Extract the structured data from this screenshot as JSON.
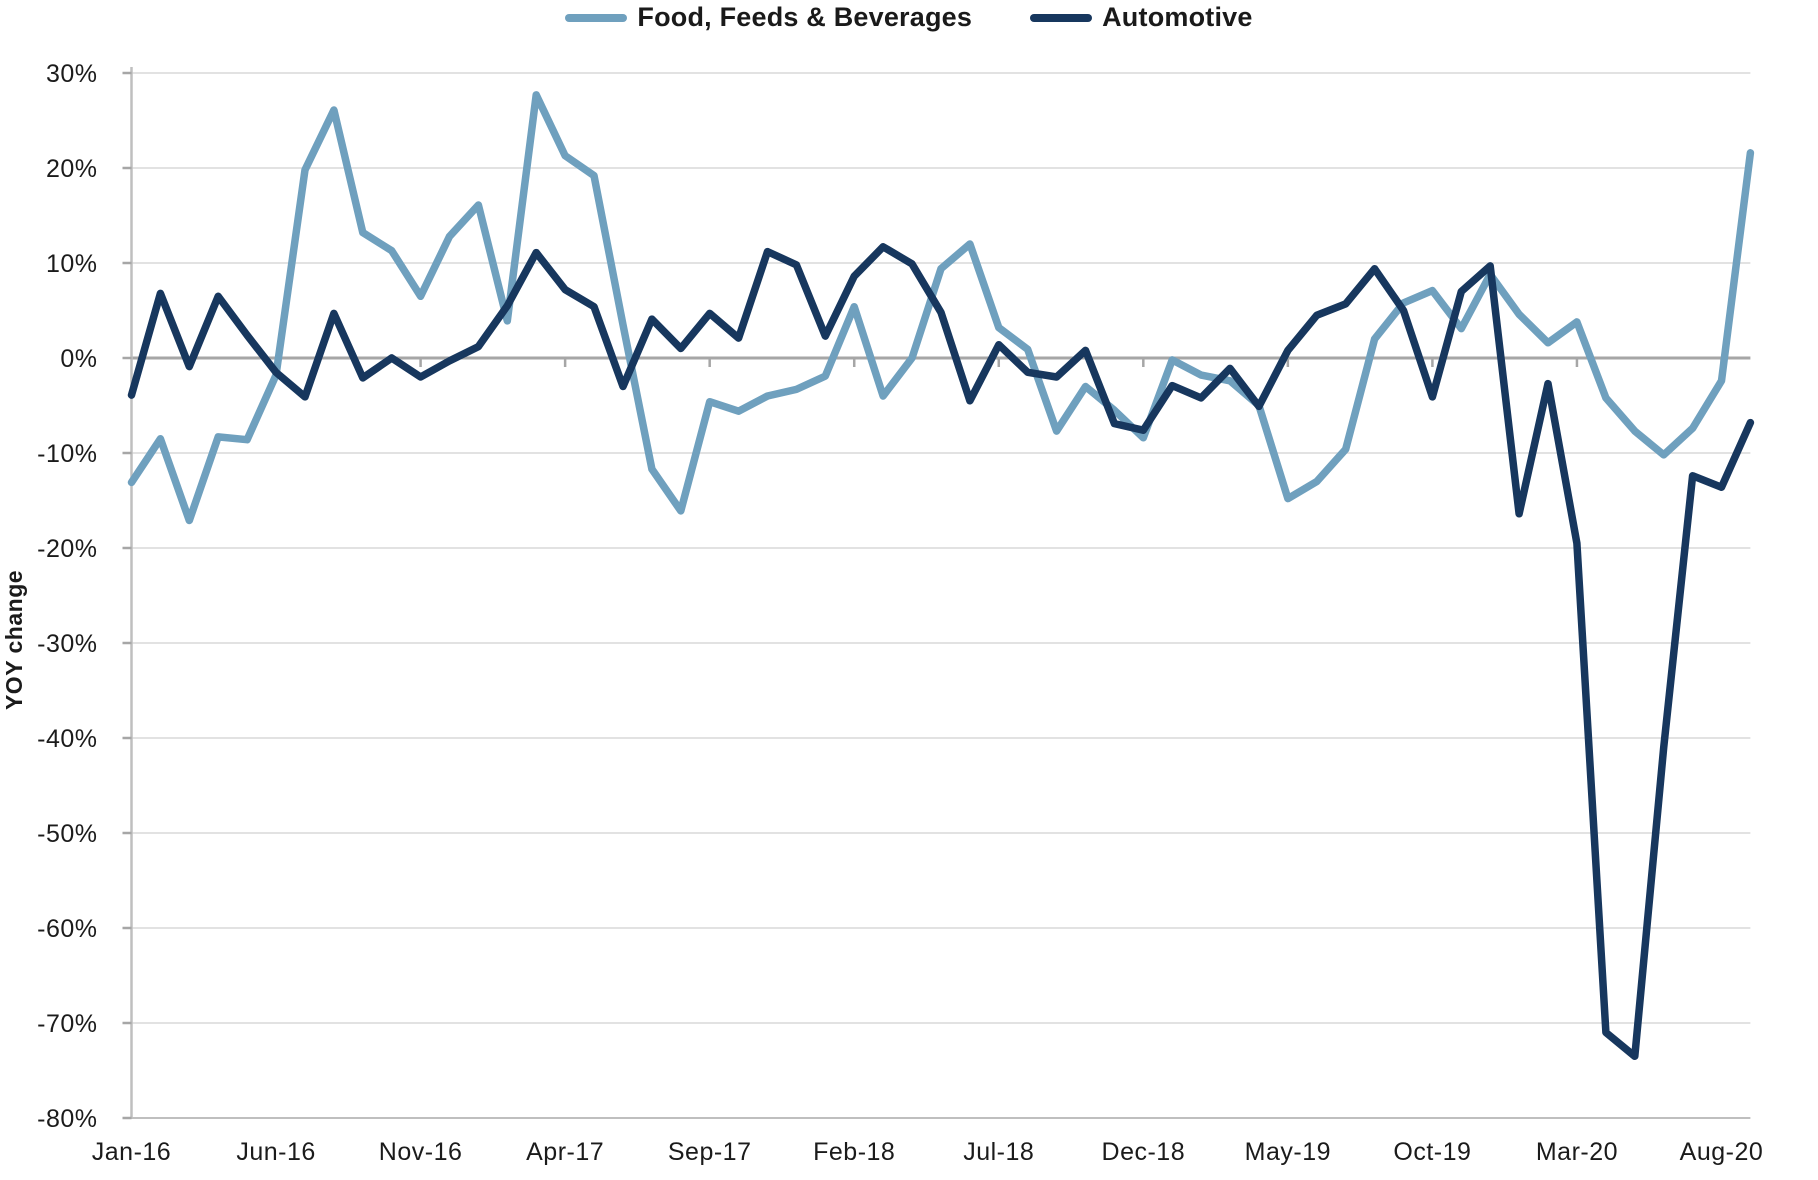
{
  "chart_data": {
    "type": "line",
    "title": "",
    "ylabel": "YOY change",
    "xlabel": "",
    "ylim": [
      -80,
      30
    ],
    "y_tick_step": 10,
    "y_tick_suffix": "%",
    "grid": "horizontal",
    "legend_position": "top-center",
    "x_label_every": 5,
    "months": [
      "Jan-16",
      "Feb-16",
      "Mar-16",
      "Apr-16",
      "May-16",
      "Jun-16",
      "Jul-16",
      "Aug-16",
      "Sep-16",
      "Oct-16",
      "Nov-16",
      "Dec-16",
      "Jan-17",
      "Feb-17",
      "Mar-17",
      "Apr-17",
      "May-17",
      "Jun-17",
      "Jul-17",
      "Aug-17",
      "Sep-17",
      "Oct-17",
      "Nov-17",
      "Dec-17",
      "Jan-18",
      "Feb-18",
      "Mar-18",
      "Apr-18",
      "May-18",
      "Jun-18",
      "Jul-18",
      "Aug-18",
      "Sep-18",
      "Oct-18",
      "Nov-18",
      "Dec-18",
      "Jan-19",
      "Feb-19",
      "Mar-19",
      "Apr-19",
      "May-19",
      "Jun-19",
      "Jul-19",
      "Aug-19",
      "Sep-19",
      "Oct-19",
      "Nov-19",
      "Dec-19",
      "Jan-20",
      "Feb-20",
      "Mar-20",
      "Apr-20",
      "May-20",
      "Jun-20",
      "Jul-20",
      "Aug-20",
      "Sep-20"
    ],
    "visible_x_tick_labels": [
      "Jan-16",
      "Jun-16",
      "Nov-16",
      "Apr-17",
      "Sep-17",
      "Feb-18",
      "Jul-18",
      "Dec-18",
      "May-19",
      "Oct-19",
      "Mar-20",
      "Aug-20"
    ],
    "series": [
      {
        "name": "Food, Feeds & Beverages",
        "color": "#6FA0BE",
        "values": [
          -13.1,
          -8.5,
          -17.1,
          -8.3,
          -8.6,
          -1.8,
          19.8,
          26.1,
          13.2,
          11.3,
          6.5,
          12.8,
          16.1,
          3.9,
          27.7,
          21.3,
          19.2,
          3.5,
          -11.7,
          -16.1,
          -4.6,
          -5.6,
          -4.0,
          -3.3,
          -1.9,
          5.4,
          -4.0,
          0.0,
          9.4,
          12.0,
          3.2,
          0.9,
          -7.7,
          -3.0,
          -5.5,
          -8.4,
          -0.2,
          -1.8,
          -2.4,
          -5.0,
          -14.8,
          -13.0,
          -9.6,
          2.0,
          5.8,
          7.1,
          3.1,
          8.8,
          4.6,
          1.6,
          3.8,
          -4.2,
          -7.7,
          -10.2,
          -7.4,
          -2.4,
          21.6
        ]
      },
      {
        "name": "Automotive",
        "color": "#17375E",
        "values": [
          -3.9,
          6.8,
          -0.9,
          6.5,
          2.4,
          -1.5,
          -4.1,
          4.7,
          -2.1,
          0.0,
          -2.0,
          -0.3,
          1.2,
          5.5,
          11.1,
          7.2,
          5.4,
          -3.0,
          4.1,
          1.0,
          4.7,
          2.1,
          11.2,
          9.8,
          2.3,
          8.6,
          11.7,
          9.9,
          4.8,
          -4.5,
          1.4,
          -1.5,
          -2.0,
          0.8,
          -6.9,
          -7.6,
          -2.9,
          -4.2,
          -1.1,
          -5.1,
          0.8,
          4.5,
          5.7,
          9.4,
          5.0,
          -4.1,
          7.0,
          9.7,
          -16.4,
          -2.7,
          -19.5,
          -71.0,
          -73.5,
          -41.0,
          -12.4,
          -13.6,
          -6.8
        ]
      }
    ],
    "colors": {
      "grid": "#d9d9d9",
      "zero_line": "#a6a6a6",
      "axis": "#bfbfbf",
      "tick": "#a6a6a6",
      "text": "#1b1b1b"
    }
  }
}
